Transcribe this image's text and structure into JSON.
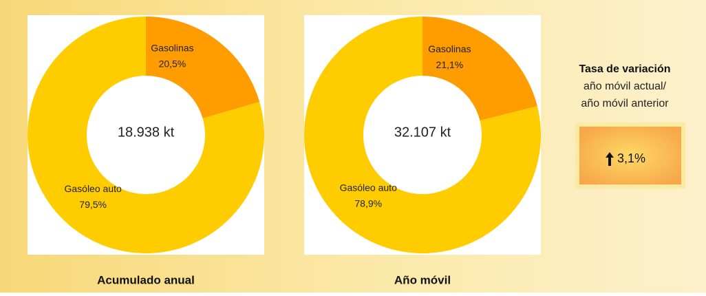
{
  "chart_data": [
    {
      "type": "donut",
      "categories": [
        "Gasolinas",
        "Gasóleo auto"
      ],
      "values": [
        20.5,
        79.5
      ],
      "value_labels": [
        "20,5%",
        "79,5%"
      ],
      "colors": [
        "#ff9c00",
        "#ffcc00"
      ],
      "center_label": "18.938 kt",
      "caption": "Acumulado anual"
    },
    {
      "type": "donut",
      "categories": [
        "Gasolinas",
        "Gasóleo auto"
      ],
      "values": [
        21.1,
        78.9
      ],
      "value_labels": [
        "21,1%",
        "78,9%"
      ],
      "colors": [
        "#ff9c00",
        "#ffcc00"
      ],
      "center_label": "32.107 kt",
      "caption": "Año móvil"
    }
  ],
  "indicator": {
    "title": "Tasa de variación",
    "subtitle": [
      "año móvil actual/",
      "año móvil anterior"
    ],
    "value_label": "3,1%"
  }
}
